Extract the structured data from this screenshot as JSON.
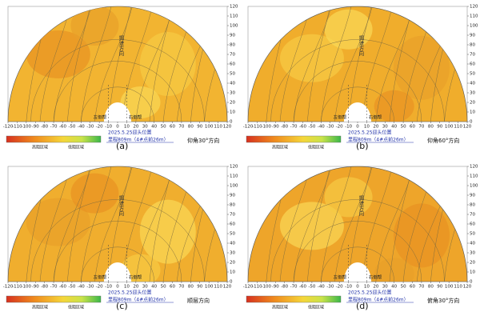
{
  "chart_data": [
    {
      "type": "contour",
      "panel_label": "(a)",
      "direction": "仰角30°方向",
      "left_wall": "左侧帮",
      "right_wall": "右侧帮",
      "face": "2025.5.25迎头位置",
      "chainage": "里程809m（4#点前26m）",
      "heading": "掘进方向",
      "legend_high": "高阻区域",
      "legend_low": "低阻区域",
      "color": "#f2b431",
      "xlim": [
        -120,
        120
      ],
      "ylim": [
        0,
        120
      ],
      "xticks": [
        -120,
        -110,
        -100,
        -90,
        -80,
        -70,
        -60,
        -50,
        -40,
        -30,
        -20,
        -10,
        0,
        10,
        20,
        30,
        40,
        50,
        60,
        70,
        80,
        90,
        100,
        110,
        120
      ],
      "yticks": [
        0,
        10,
        20,
        30,
        40,
        50,
        60,
        70,
        80,
        90,
        100,
        110,
        120
      ]
    },
    {
      "type": "contour",
      "panel_label": "(b)",
      "direction": "仰角60°方向",
      "left_wall": "左侧帮",
      "right_wall": "右侧帮",
      "face": "2025.5.25迎头位置",
      "chainage": "里程809m（4#点前26m）",
      "heading": "掘进方向",
      "legend_high": "高阻区域",
      "legend_low": "低阻区域",
      "color": "#f0ad2c",
      "xlim": [
        -120,
        120
      ],
      "ylim": [
        0,
        120
      ],
      "xticks": [
        -120,
        -110,
        -100,
        -90,
        -80,
        -70,
        -60,
        -50,
        -40,
        -30,
        -20,
        -10,
        0,
        10,
        20,
        30,
        40,
        50,
        60,
        70,
        80,
        90,
        100,
        110,
        120
      ],
      "yticks": [
        0,
        10,
        20,
        30,
        40,
        50,
        60,
        70,
        80,
        90,
        100,
        110,
        120
      ]
    },
    {
      "type": "contour",
      "panel_label": "(c)",
      "direction": "顺层方向",
      "left_wall": "左侧帮",
      "right_wall": "右侧帮",
      "face": "2025.5.25迎头位置",
      "chainage": "里程809m（4#点前26m）",
      "heading": "掘进方向",
      "legend_high": "高阻区域",
      "legend_low": "低阻区域",
      "color": "#f0ae2e",
      "xlim": [
        -120,
        120
      ],
      "ylim": [
        0,
        120
      ],
      "xticks": [
        -120,
        -110,
        -100,
        -90,
        -80,
        -70,
        -60,
        -50,
        -40,
        -30,
        -20,
        -10,
        0,
        10,
        20,
        30,
        40,
        50,
        60,
        70,
        80,
        90,
        100,
        110,
        120
      ],
      "yticks": [
        0,
        10,
        20,
        30,
        40,
        50,
        60,
        70,
        80,
        90,
        100,
        110,
        120
      ]
    },
    {
      "type": "contour",
      "panel_label": "(d)",
      "direction": "俯角30°方向",
      "left_wall": "左侧帮",
      "right_wall": "右侧帮",
      "face": "2025.5.25迎头位置",
      "chainage": "里程809m（4#点前26m）",
      "heading": "掘进方向",
      "legend_high": "高阻区域",
      "legend_low": "低阻区域",
      "color": "#eea52a",
      "xlim": [
        -120,
        120
      ],
      "ylim": [
        0,
        120
      ],
      "xticks": [
        -120,
        -110,
        -100,
        -90,
        -80,
        -70,
        -60,
        -50,
        -40,
        -30,
        -20,
        -10,
        0,
        10,
        20,
        30,
        40,
        50,
        60,
        70,
        80,
        90,
        100,
        110,
        120
      ],
      "yticks": [
        0,
        10,
        20,
        30,
        40,
        50,
        60,
        70,
        80,
        90,
        100,
        110,
        120
      ]
    }
  ]
}
